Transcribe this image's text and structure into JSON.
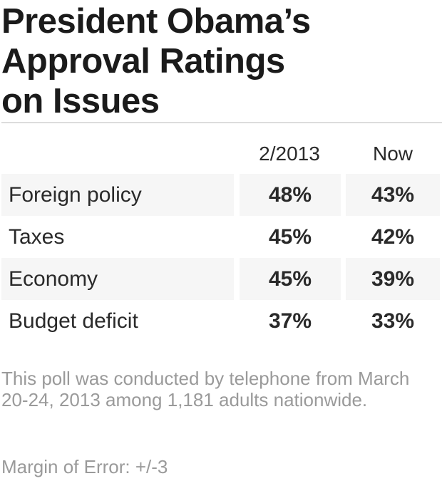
{
  "chart_data": {
    "type": "table",
    "title": "President Obama’s Approval Ratings on Issues",
    "columns": [
      "",
      "2/2013",
      "Now"
    ],
    "rows": [
      {
        "issue": "Foreign policy",
        "values": [
          "48%",
          "43%"
        ]
      },
      {
        "issue": "Taxes",
        "values": [
          "45%",
          "42%"
        ]
      },
      {
        "issue": "Economy",
        "values": [
          "45%",
          "39%"
        ]
      },
      {
        "issue": "Budget deficit",
        "values": [
          "37%",
          "33%"
        ]
      }
    ],
    "series": [
      {
        "name": "2/2013",
        "values": [
          48,
          45,
          45,
          37
        ]
      },
      {
        "name": "Now",
        "values": [
          43,
          42,
          39,
          33
        ]
      }
    ],
    "categories": [
      "Foreign policy",
      "Taxes",
      "Economy",
      "Budget deficit"
    ],
    "unit": "%"
  },
  "title_lines": [
    "President Obama’s",
    "Approval Ratings",
    "on Issues"
  ],
  "footnote": "This poll was conducted by telephone from March 20-24, 2013 among 1,181 adults nationwide.",
  "margin_of_error": "Margin of Error: +/-3",
  "colors": {
    "title": "#1b1b1b",
    "text": "#2a2a2a",
    "row_shade": "#f6f6f6",
    "divider": "#dcdcdc",
    "note": "#9a9a9a"
  }
}
